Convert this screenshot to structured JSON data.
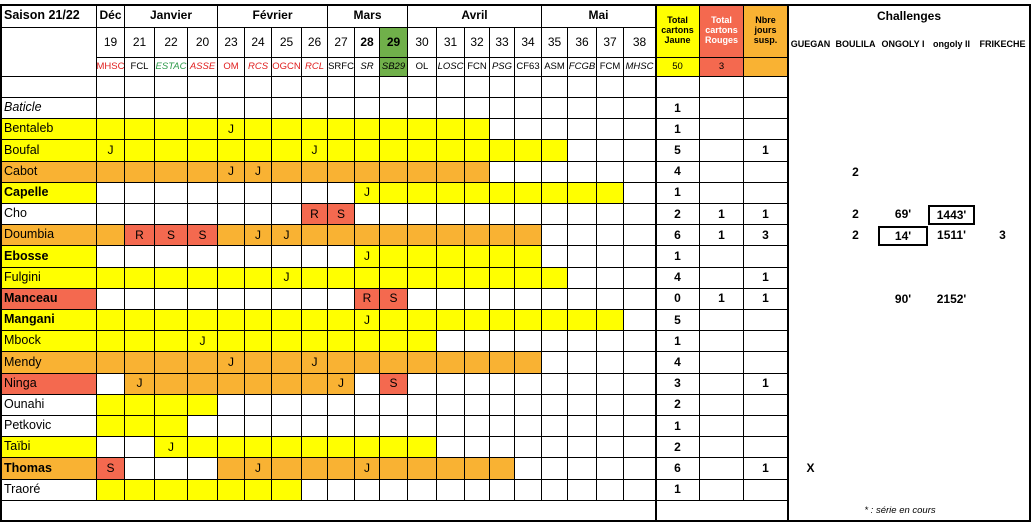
{
  "title": "Saison 21/22",
  "months": [
    {
      "label": "Déc",
      "span": 1
    },
    {
      "label": "Janvier",
      "span": 3
    },
    {
      "label": "Février",
      "span": 4
    },
    {
      "label": "Mars",
      "span": 3
    },
    {
      "label": "Avril",
      "span": 5
    },
    {
      "label": "Mai",
      "span": 4
    }
  ],
  "matches": [
    {
      "n": 19,
      "opp": "MHSC",
      "color": "red"
    },
    {
      "n": 21,
      "opp": "FCL"
    },
    {
      "n": 22,
      "opp": "ESTAC",
      "color": "green",
      "italic": true
    },
    {
      "n": 20,
      "opp": "ASSE",
      "color": "red",
      "italic": true
    },
    {
      "n": 23,
      "opp": "OM",
      "color": "red"
    },
    {
      "n": 24,
      "opp": "RCS",
      "color": "red",
      "italic": true
    },
    {
      "n": 25,
      "opp": "OGCN",
      "color": "red"
    },
    {
      "n": 26,
      "opp": "RCL",
      "color": "red",
      "italic": true
    },
    {
      "n": 27,
      "opp": "SRFC"
    },
    {
      "n": 28,
      "opp": "SR",
      "italic": true,
      "bold": true
    },
    {
      "n": 29,
      "opp": "SB29",
      "italic": true,
      "bold": true,
      "fill": "G"
    },
    {
      "n": 30,
      "opp": "OL"
    },
    {
      "n": 31,
      "opp": "LOSC",
      "italic": true
    },
    {
      "n": 32,
      "opp": "FCN"
    },
    {
      "n": 33,
      "opp": "PSG",
      "italic": true
    },
    {
      "n": 34,
      "opp": "CF63"
    },
    {
      "n": 35,
      "opp": "ASM"
    },
    {
      "n": 36,
      "opp": "FCGB",
      "italic": true
    },
    {
      "n": 37,
      "opp": "FCM"
    },
    {
      "n": 38,
      "opp": "MHSC",
      "italic": true
    }
  ],
  "total_headers": [
    {
      "label": "Total cartons Jaune",
      "fill": "Y"
    },
    {
      "label": "Total cartons Rouges",
      "fill": "R",
      "color": "white"
    },
    {
      "label": "Nbre jours susp.",
      "fill": "O"
    }
  ],
  "total_values": [
    50,
    3,
    null
  ],
  "challenges": {
    "title": "Challenges",
    "columns": [
      "GUEGAN",
      "BOULILA",
      "ONGOLY I",
      "ongoly II",
      "FRIKECHE"
    ]
  },
  "rows": [
    {
      "name": "Baticle",
      "fill": "W",
      "italic": true,
      "cells": "WWWWWWWWWWWWWWWWWWWW",
      "marks": {},
      "totals": [
        1,
        null,
        null
      ],
      "challenges": [
        null,
        null,
        null,
        null,
        null
      ]
    },
    {
      "name": "Bentaleb",
      "fill": "Y",
      "cells": "YYYYYYYYYYYYYYWWWWWW",
      "marks": {
        "4": "J"
      },
      "totals": [
        1,
        null,
        null
      ],
      "challenges": [
        null,
        null,
        null,
        null,
        null
      ]
    },
    {
      "name": "Boufal",
      "fill": "Y",
      "cells": "YYYYYYYYYYYYYYYYYWWW",
      "marks": {
        "0": "J",
        "7": "J"
      },
      "totals": [
        5,
        null,
        1
      ],
      "challenges": [
        null,
        null,
        null,
        null,
        null
      ]
    },
    {
      "name": "Cabot",
      "fill": "O",
      "cells": "OOOOOOOOOOOOOOWWWWWW",
      "marks": {
        "4": "J",
        "5": "J"
      },
      "totals": [
        4,
        null,
        null
      ],
      "challenges": [
        null,
        2,
        null,
        null,
        null
      ]
    },
    {
      "name": "Capelle",
      "fill": "Y",
      "bold": true,
      "cells": "WWWWWWWWWYYYYYYYYYYW",
      "marks": {
        "9": "J"
      },
      "totals": [
        1,
        null,
        null
      ],
      "challenges": [
        null,
        null,
        null,
        null,
        null
      ]
    },
    {
      "name": "Cho",
      "fill": "W",
      "cells": "WWWWWWWRRWWWWWWWWWWW",
      "marks": {
        "7": "R",
        "8": "S"
      },
      "totals": [
        2,
        1,
        1
      ],
      "challenges": [
        null,
        2,
        "69'",
        "1443'",
        null
      ],
      "boxed": [
        3
      ]
    },
    {
      "name": "Doumbia",
      "fill": "O",
      "cells": "ORRROOOOOOOOOOOOWWWW",
      "marks": {
        "1": "R",
        "2": "S",
        "3": "S",
        "5": "J",
        "6": "J"
      },
      "totals": [
        6,
        1,
        3
      ],
      "challenges": [
        null,
        2,
        "14'",
        "1511'",
        3
      ],
      "boxed": [
        2
      ]
    },
    {
      "name": "Ebosse",
      "fill": "Y",
      "bold": true,
      "cells": "WWWWWWWWWYYYYYYYWWWW",
      "marks": {
        "9": "J"
      },
      "totals": [
        1,
        null,
        null
      ],
      "challenges": [
        null,
        null,
        null,
        null,
        null
      ]
    },
    {
      "name": "Fulgini",
      "fill": "Y",
      "cells": "YYYYYYYYYYYYYYYYYWWW",
      "marks": {
        "6": "J"
      },
      "totals": [
        4,
        null,
        1
      ],
      "challenges": [
        null,
        null,
        null,
        null,
        null
      ]
    },
    {
      "name": "Manceau",
      "fill": "R",
      "bold": true,
      "cells": "WWWWWWWWWRRWWWWWWWWW",
      "marks": {
        "9": "R",
        "10": "S"
      },
      "totals": [
        0,
        1,
        1
      ],
      "challenges": [
        null,
        null,
        "90'",
        "2152'",
        null
      ]
    },
    {
      "name": "Mangani",
      "fill": "Y",
      "bold": true,
      "cells": "YYYYYYYYYYYYYYYYYYYW",
      "marks": {
        "9": "J"
      },
      "totals": [
        5,
        null,
        null
      ],
      "challenges": [
        null,
        null,
        null,
        null,
        null
      ]
    },
    {
      "name": "Mbock",
      "fill": "Y",
      "cells": "YYYYYYYYYYYYWWWWWWWW",
      "marks": {
        "3": "J"
      },
      "totals": [
        1,
        null,
        null
      ],
      "challenges": [
        null,
        null,
        null,
        null,
        null
      ]
    },
    {
      "name": "Mendy",
      "fill": "O",
      "cells": "OOOOOOOOOOOOOOOOWWWW",
      "marks": {
        "4": "J",
        "7": "J"
      },
      "totals": [
        4,
        null,
        null
      ],
      "challenges": [
        null,
        null,
        null,
        null,
        null
      ]
    },
    {
      "name": "Ninga",
      "fill": "R",
      "cells": "WOOOOOOOOWRWWWWWWWWW",
      "marks": {
        "1": "J",
        "8": "J",
        "10": "S"
      },
      "totals": [
        3,
        null,
        1
      ],
      "challenges": [
        null,
        null,
        null,
        null,
        null
      ]
    },
    {
      "name": "Ounahi",
      "fill": "W",
      "cells": "YYYYWWWWWWWWWWWWWWWW",
      "marks": {},
      "totals": [
        2,
        null,
        null
      ],
      "challenges": [
        null,
        null,
        null,
        null,
        null
      ]
    },
    {
      "name": "Petkovic",
      "fill": "W",
      "cells": "YYYWWWWWWWWWWWWWWWWW",
      "marks": {},
      "totals": [
        1,
        null,
        null
      ],
      "challenges": [
        null,
        null,
        null,
        null,
        null
      ]
    },
    {
      "name": "Taïbi",
      "fill": "Y",
      "cells": "WWYYYYYYYYYYWWWWWWWW",
      "marks": {
        "2": "J"
      },
      "totals": [
        2,
        null,
        null
      ],
      "challenges": [
        null,
        null,
        null,
        null,
        null
      ]
    },
    {
      "name": "Thomas",
      "fill": "O",
      "bold": true,
      "cells": "RWWWOOOOOOOOOOOWWWWW",
      "marks": {
        "0": "S",
        "5": "J",
        "9": "J"
      },
      "totals": [
        6,
        null,
        1
      ],
      "challenges": [
        "X",
        null,
        null,
        null,
        null
      ]
    },
    {
      "name": "Traoré",
      "fill": "W",
      "cells": "YYYYYYYWWWWWWWWWWWWW",
      "marks": {},
      "totals": [
        1,
        null,
        null
      ],
      "challenges": [
        null,
        null,
        null,
        null,
        null
      ]
    }
  ],
  "footnote": "* : série en cours"
}
